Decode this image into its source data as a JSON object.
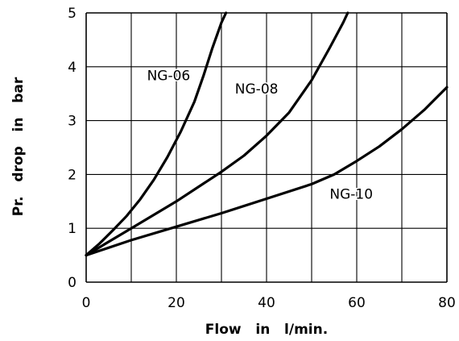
{
  "chart_data": {
    "type": "line",
    "title": "",
    "xlabel": "Flow   in   l/min.",
    "ylabel": "Pr.   drop   in   bar",
    "xlim": [
      0,
      80
    ],
    "ylim": [
      0,
      5
    ],
    "xticks": [
      0,
      20,
      40,
      60,
      80
    ],
    "yticks": [
      0,
      1,
      2,
      3,
      4,
      5
    ],
    "x_grid_step": 10,
    "y_grid_step": 1,
    "grid": true,
    "legend": "inline labels",
    "line_color": "#000000",
    "series": [
      {
        "name": "NG-06",
        "x": [
          0,
          3,
          6,
          9,
          12,
          15,
          18,
          21,
          24,
          26,
          28,
          30,
          31
        ],
        "y": [
          0.5,
          0.72,
          0.97,
          1.23,
          1.54,
          1.9,
          2.32,
          2.8,
          3.35,
          3.83,
          4.35,
          4.82,
          5.0
        ]
      },
      {
        "name": "NG-08",
        "x": [
          0,
          10,
          20,
          30,
          35,
          40,
          45,
          50,
          54,
          57,
          58
        ],
        "y": [
          0.5,
          1.0,
          1.5,
          2.05,
          2.35,
          2.72,
          3.15,
          3.75,
          4.35,
          4.82,
          5.0
        ]
      },
      {
        "name": "NG-10",
        "x": [
          0,
          10,
          20,
          30,
          40,
          50,
          55,
          60,
          65,
          70,
          75,
          80
        ],
        "y": [
          0.5,
          0.78,
          1.03,
          1.28,
          1.55,
          1.82,
          2.0,
          2.25,
          2.52,
          2.84,
          3.2,
          3.62
        ]
      }
    ],
    "annotations": [
      {
        "text": "NG-06",
        "series": "NG-06",
        "x": 13.5,
        "y": 3.75
      },
      {
        "text": "NG-08",
        "series": "NG-08",
        "x": 33,
        "y": 3.5
      },
      {
        "text": "NG-10",
        "series": "NG-10",
        "x": 54,
        "y": 1.55
      }
    ]
  }
}
